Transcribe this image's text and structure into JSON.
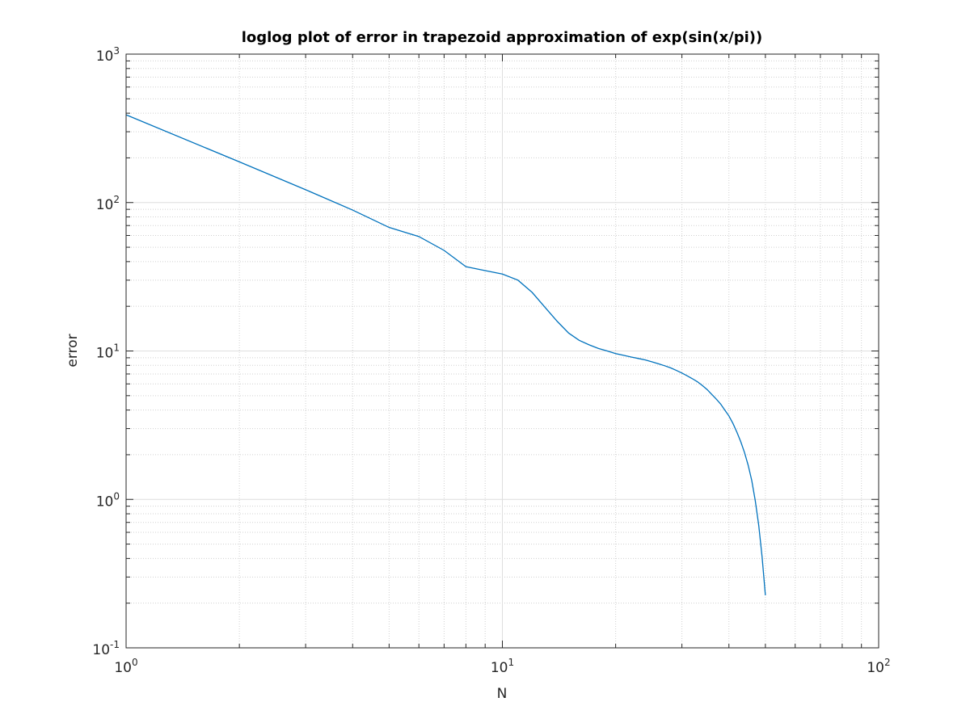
{
  "chart_data": {
    "type": "line",
    "title": "loglog plot of error in trapezoid approximation of exp(sin(x/pi))",
    "xlabel": "N",
    "ylabel": "error",
    "x": [
      1,
      2,
      3,
      4,
      5,
      6,
      7,
      8,
      9,
      10,
      11,
      12,
      13,
      14,
      15,
      16,
      17,
      18,
      19,
      20,
      21,
      22,
      23,
      24,
      25,
      26,
      27,
      28,
      29,
      30,
      31,
      32,
      33,
      34,
      35,
      36,
      37,
      38,
      39,
      40,
      41,
      42,
      43,
      44,
      45,
      46,
      47,
      48,
      49,
      50
    ],
    "values": [
      390,
      188,
      122,
      89,
      68,
      59,
      47.6,
      37,
      34.8,
      33,
      30,
      24.8,
      19.6,
      15.8,
      13.2,
      11.8,
      11,
      10.4,
      10,
      9.6,
      9.35,
      9.1,
      8.9,
      8.7,
      8.45,
      8.2,
      7.95,
      7.7,
      7.4,
      7.1,
      6.8,
      6.5,
      6.2,
      5.85,
      5.5,
      5.1,
      4.75,
      4.4,
      4.0,
      3.65,
      3.25,
      2.84,
      2.45,
      2.07,
      1.7,
      1.34,
      0.98,
      0.67,
      0.41,
      0.226
    ],
    "color": "#0072bd",
    "xscale": "log",
    "yscale": "log",
    "xlim": [
      1,
      100
    ],
    "ylim": [
      0.1,
      1000
    ],
    "xticks": [
      {
        "value": 1,
        "label": "10",
        "power": "0"
      },
      {
        "value": 10,
        "label": "10",
        "power": "1"
      },
      {
        "value": 100,
        "label": "10",
        "power": "2"
      }
    ],
    "yticks": [
      {
        "value": 0.1,
        "label": "10",
        "power": "-1"
      },
      {
        "value": 1,
        "label": "10",
        "power": "0"
      },
      {
        "value": 10,
        "label": "10",
        "power": "1"
      },
      {
        "value": 100,
        "label": "10",
        "power": "2"
      },
      {
        "value": 1000,
        "label": "10",
        "power": "3"
      }
    ],
    "grid": true,
    "minor_grid": true
  }
}
